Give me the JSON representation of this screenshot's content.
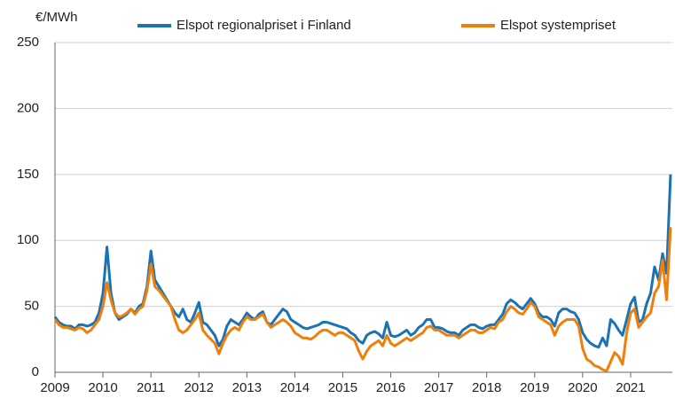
{
  "chart_data": {
    "type": "line",
    "ylabel": "€/MWh",
    "x": [
      2009,
      2009.083,
      2009.167,
      2009.25,
      2009.333,
      2009.417,
      2009.5,
      2009.583,
      2009.667,
      2009.75,
      2009.833,
      2009.917,
      2010,
      2010.083,
      2010.167,
      2010.25,
      2010.333,
      2010.417,
      2010.5,
      2010.583,
      2010.667,
      2010.75,
      2010.833,
      2010.917,
      2011,
      2011.083,
      2011.167,
      2011.25,
      2011.333,
      2011.417,
      2011.5,
      2011.583,
      2011.667,
      2011.75,
      2011.833,
      2011.917,
      2012,
      2012.083,
      2012.167,
      2012.25,
      2012.333,
      2012.417,
      2012.5,
      2012.583,
      2012.667,
      2012.75,
      2012.833,
      2012.917,
      2013,
      2013.083,
      2013.167,
      2013.25,
      2013.333,
      2013.417,
      2013.5,
      2013.583,
      2013.667,
      2013.75,
      2013.833,
      2013.917,
      2014,
      2014.083,
      2014.167,
      2014.25,
      2014.333,
      2014.417,
      2014.5,
      2014.583,
      2014.667,
      2014.75,
      2014.833,
      2014.917,
      2015,
      2015.083,
      2015.167,
      2015.25,
      2015.333,
      2015.417,
      2015.5,
      2015.583,
      2015.667,
      2015.75,
      2015.833,
      2015.917,
      2016,
      2016.083,
      2016.167,
      2016.25,
      2016.333,
      2016.417,
      2016.5,
      2016.583,
      2016.667,
      2016.75,
      2016.833,
      2016.917,
      2017,
      2017.083,
      2017.167,
      2017.25,
      2017.333,
      2017.417,
      2017.5,
      2017.583,
      2017.667,
      2017.75,
      2017.833,
      2017.917,
      2018,
      2018.083,
      2018.167,
      2018.25,
      2018.333,
      2018.417,
      2018.5,
      2018.583,
      2018.667,
      2018.75,
      2018.833,
      2018.917,
      2019,
      2019.083,
      2019.167,
      2019.25,
      2019.333,
      2019.417,
      2019.5,
      2019.583,
      2019.667,
      2019.75,
      2019.833,
      2019.917,
      2020,
      2020.083,
      2020.167,
      2020.25,
      2020.333,
      2020.417,
      2020.5,
      2020.583,
      2020.667,
      2020.75,
      2020.833,
      2020.917,
      2021,
      2021.083,
      2021.167,
      2021.25,
      2021.333,
      2021.417,
      2021.5,
      2021.583,
      2021.667,
      2021.75,
      2021.833
    ],
    "series": [
      {
        "name": "Elspot regionalpriset i Finland",
        "color": "#1a73b5",
        "values": [
          42,
          38,
          36,
          35,
          35,
          33,
          36,
          36,
          35,
          36,
          38,
          45,
          60,
          95,
          60,
          45,
          40,
          42,
          44,
          48,
          45,
          50,
          52,
          65,
          92,
          70,
          65,
          60,
          55,
          50,
          45,
          42,
          48,
          40,
          38,
          45,
          53,
          38,
          36,
          32,
          28,
          20,
          25,
          35,
          40,
          38,
          36,
          40,
          45,
          42,
          40,
          44,
          46,
          38,
          36,
          40,
          44,
          48,
          46,
          40,
          38,
          36,
          34,
          33,
          34,
          35,
          36,
          38,
          38,
          37,
          36,
          35,
          34,
          33,
          30,
          28,
          24,
          22,
          28,
          30,
          31,
          29,
          26,
          38,
          28,
          27,
          28,
          30,
          32,
          28,
          30,
          34,
          36,
          40,
          40,
          34,
          34,
          33,
          31,
          30,
          30,
          28,
          32,
          34,
          36,
          36,
          34,
          33,
          35,
          36,
          36,
          40,
          44,
          52,
          55,
          53,
          50,
          48,
          52,
          56,
          52,
          45,
          42,
          42,
          40,
          35,
          45,
          48,
          48,
          46,
          45,
          40,
          30,
          25,
          22,
          20,
          19,
          26,
          20,
          40,
          37,
          32,
          28,
          40,
          52,
          57,
          38,
          40,
          52,
          60,
          80,
          70,
          90,
          75,
          150
        ]
      },
      {
        "name": "Elspot systempriset",
        "color": "#f07f0a",
        "values": [
          40,
          36,
          34,
          34,
          33,
          32,
          34,
          33,
          30,
          32,
          36,
          40,
          50,
          68,
          55,
          45,
          42,
          43,
          45,
          48,
          44,
          48,
          50,
          62,
          82,
          65,
          62,
          58,
          54,
          50,
          40,
          32,
          30,
          32,
          36,
          40,
          45,
          32,
          28,
          25,
          22,
          14,
          22,
          28,
          32,
          34,
          32,
          38,
          42,
          40,
          40,
          42,
          44,
          38,
          34,
          36,
          38,
          40,
          38,
          35,
          30,
          28,
          26,
          26,
          25,
          27,
          30,
          32,
          32,
          30,
          28,
          30,
          30,
          28,
          26,
          24,
          16,
          10,
          16,
          20,
          22,
          24,
          20,
          28,
          22,
          20,
          22,
          24,
          26,
          24,
          26,
          28,
          30,
          34,
          35,
          32,
          32,
          30,
          28,
          28,
          28,
          26,
          28,
          30,
          32,
          32,
          30,
          30,
          32,
          34,
          33,
          38,
          40,
          46,
          50,
          48,
          45,
          44,
          48,
          53,
          50,
          42,
          40,
          38,
          36,
          28,
          35,
          38,
          40,
          40,
          40,
          35,
          18,
          10,
          8,
          5,
          4,
          2,
          1,
          8,
          15,
          12,
          6,
          30,
          45,
          48,
          34,
          38,
          42,
          45,
          60,
          65,
          85,
          55,
          110
        ]
      }
    ],
    "xlim": [
      2009,
      2021.87
    ],
    "xticks": [
      2009,
      2010,
      2011,
      2012,
      2013,
      2014,
      2015,
      2016,
      2017,
      2018,
      2019,
      2020,
      2021
    ],
    "ylim": [
      0,
      250
    ],
    "yticks": [
      0,
      50,
      100,
      150,
      200,
      250
    ],
    "grid": true
  }
}
